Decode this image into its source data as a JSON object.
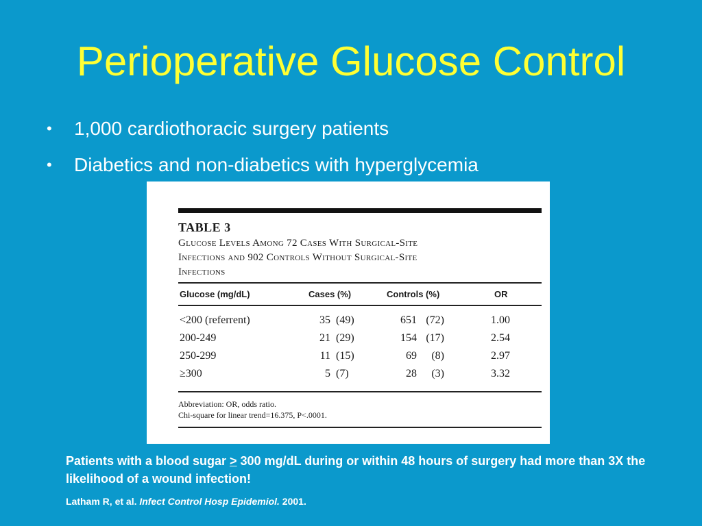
{
  "slide": {
    "title": "Perioperative Glucose Control",
    "bullets": [
      "1,000 cardiothoracic surgery patients",
      "Diabetics and non-diabetics with hyperglycemia"
    ],
    "bullet_glyph": "•"
  },
  "table": {
    "label": "TABLE 3",
    "caption_lines": [
      "Glucose Levels Among 72 Cases With Surgical-Site",
      "Infections and 902 Controls Without Surgical-Site",
      "Infections"
    ],
    "columns": [
      "Glucose (mg/dL)",
      "Cases (%)",
      "Controls (%)",
      "OR"
    ],
    "rows": [
      {
        "glucose": "<200 (referrent)",
        "cases": "35",
        "cases_pct": "(49)",
        "controls": "651",
        "controls_pct": "(72)",
        "or": "1.00"
      },
      {
        "glucose": "200-249",
        "cases": "21",
        "cases_pct": "(29)",
        "controls": "154",
        "controls_pct": "(17)",
        "or": "2.54"
      },
      {
        "glucose": "250-299",
        "cases": "11",
        "cases_pct": "(15)",
        "controls": "69",
        "controls_pct": "(8)",
        "or": "2.97"
      },
      {
        "glucose": "≥300",
        "cases": "5",
        "cases_pct": "(7)",
        "controls": "28",
        "controls_pct": "(3)",
        "or": "3.32"
      }
    ],
    "footnotes": [
      "Abbreviation: OR, odds ratio.",
      "Chi-square for linear trend=16.375, P<.0001."
    ]
  },
  "summary": {
    "part1": "Patients with a blood sugar ",
    "symbol": ">",
    "part2": " 300 mg/dL during or within 48 hours of surgery had more than 3X the likelihood of a wound infection!"
  },
  "citation": {
    "authors": "Latham R, et al. ",
    "journal": "Infect Control Hosp Epidemiol.",
    "year": " 2001."
  },
  "colors": {
    "background": "#0b99cc",
    "title": "#ffff33",
    "text": "#ffffff"
  }
}
